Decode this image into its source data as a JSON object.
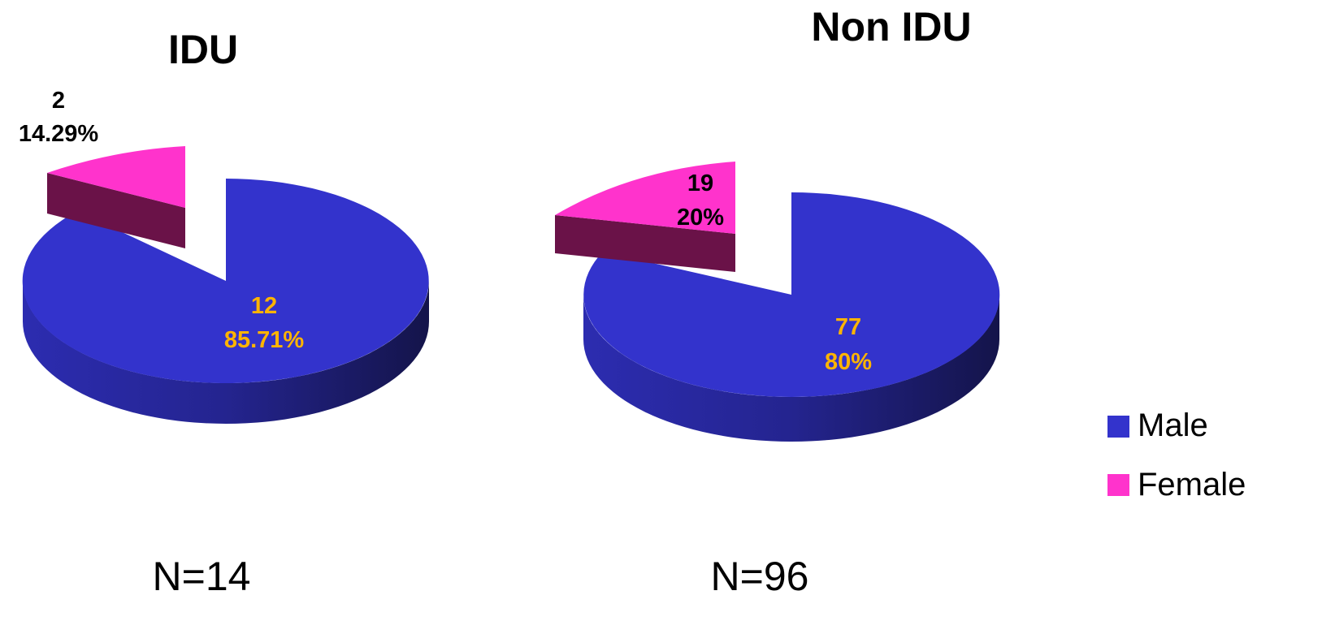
{
  "chart_data": [
    {
      "type": "pie",
      "title": "IDU",
      "sample_size_label": "N=14",
      "slices": [
        {
          "category": "Male",
          "count": 12,
          "percent": "85.71%"
        },
        {
          "category": "Female",
          "count": 2,
          "percent": "14.29%"
        }
      ]
    },
    {
      "type": "pie",
      "title": "Non IDU",
      "sample_size_label": "N=96",
      "slices": [
        {
          "category": "Male",
          "count": 77,
          "percent": "80%"
        },
        {
          "category": "Female",
          "count": 19,
          "percent": "20%"
        }
      ]
    }
  ],
  "legend": {
    "placement": "right",
    "items": [
      {
        "label": "Male",
        "color": "#3333cc"
      },
      {
        "label": "Female",
        "color": "#ff33cc"
      }
    ]
  },
  "colors": {
    "male_top": "#3333cc",
    "male_side_dark": "#14144a",
    "female_top": "#ff33cc",
    "female_side": "#6a1248",
    "male_label": "#ffb400",
    "female_label": "#000000"
  }
}
